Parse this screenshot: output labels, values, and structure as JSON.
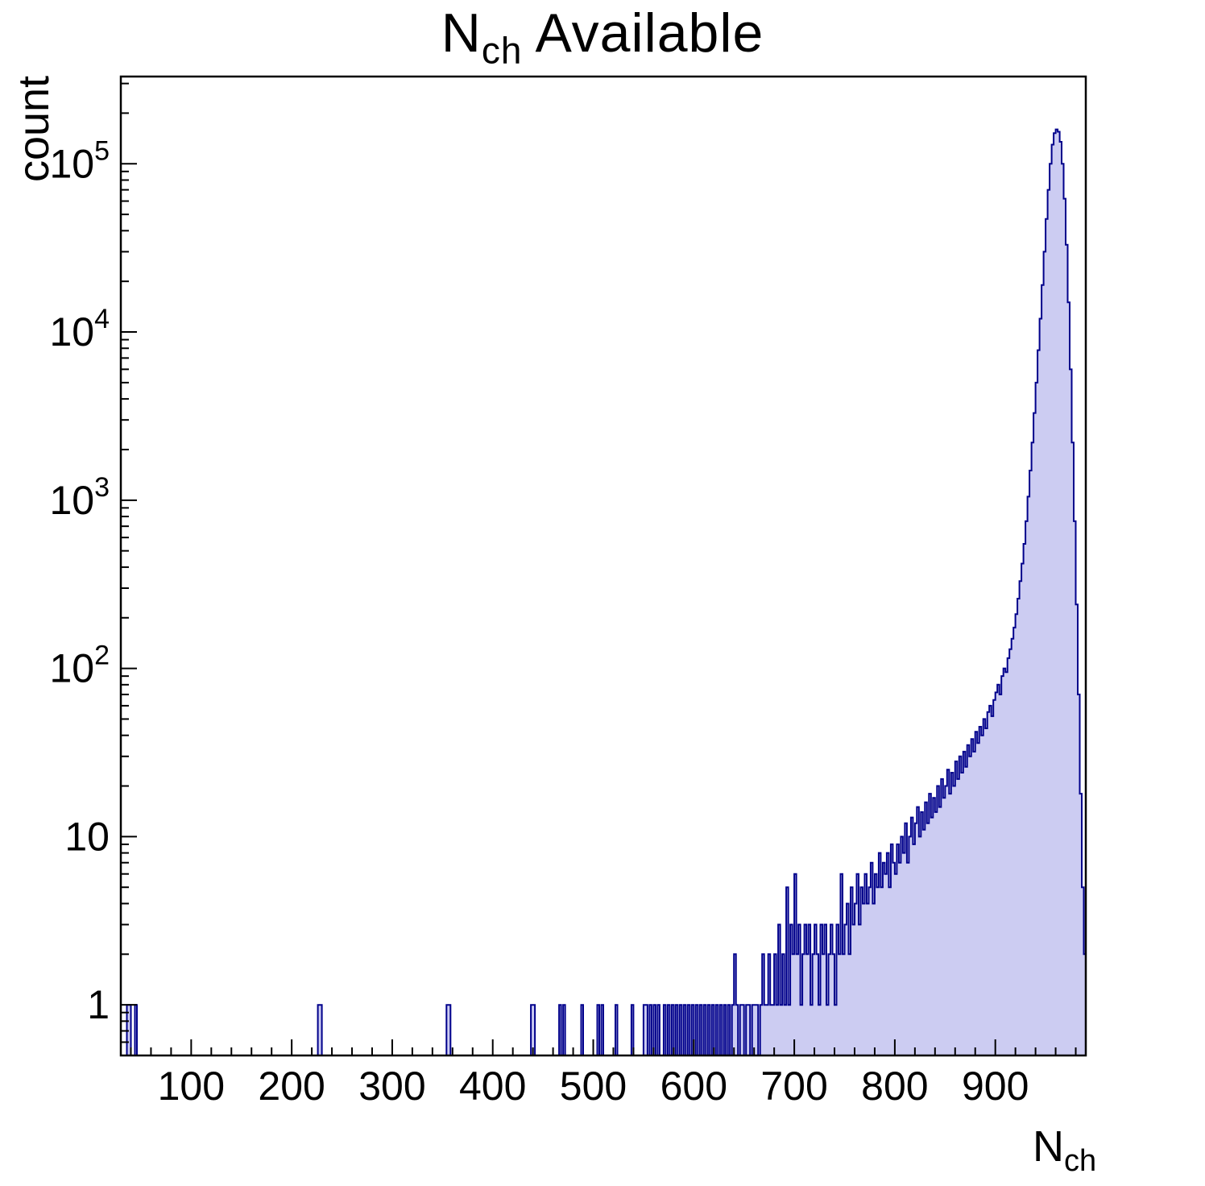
{
  "chart_data": {
    "type": "bar",
    "title": {
      "main": "N",
      "sub": "ch",
      "rest": " Available"
    },
    "xlabel": {
      "main": "N",
      "sub": "ch"
    },
    "ylabel": "count",
    "x_range": [
      30,
      990
    ],
    "y_range_log": [
      0.5,
      330000
    ],
    "x_major_ticks": [
      100,
      200,
      300,
      400,
      500,
      600,
      700,
      800,
      900
    ],
    "x_minor_step": 20,
    "y_major_ticks": [
      1,
      10,
      100,
      1000,
      10000,
      100000
    ],
    "y_tick_labels": [
      "1",
      "10",
      "10^2",
      "10^3",
      "10^4",
      "10^5"
    ],
    "grid": false,
    "legend": "none",
    "colors": {
      "fill": "#ccccf2",
      "line": "#00008b",
      "frame": "#000000"
    },
    "bin_width": 2,
    "sparse_single_count_bins": [
      36,
      38,
      43,
      225,
      227,
      353,
      356,
      437,
      440,
      466,
      469,
      488,
      504,
      507,
      521,
      538,
      549,
      552,
      556,
      560,
      564,
      570,
      574,
      578,
      582,
      586,
      590,
      594,
      598,
      602,
      606,
      610,
      614,
      618,
      622,
      626,
      630,
      634,
      637
    ],
    "dense_region": {
      "x_start": 640,
      "bin_width": 2,
      "counts": [
        2,
        1,
        0,
        1,
        1,
        0,
        1,
        1,
        0,
        1,
        1,
        1,
        0,
        1,
        2,
        1,
        1,
        2,
        1,
        1,
        2,
        1,
        3,
        1,
        2,
        1,
        5,
        1,
        3,
        2,
        6,
        2,
        3,
        1,
        2,
        3,
        2,
        3,
        1,
        2,
        3,
        2,
        1,
        3,
        2,
        3,
        1,
        2,
        3,
        2,
        1,
        3,
        2,
        6,
        2,
        3,
        4,
        2,
        5,
        3,
        4,
        6,
        3,
        5,
        4,
        6,
        4,
        5,
        7,
        4,
        6,
        5,
        8,
        5,
        7,
        6,
        8,
        5,
        9,
        7,
        6,
        9,
        7,
        10,
        8,
        12,
        7,
        10,
        13,
        9,
        12,
        15,
        10,
        14,
        11,
        16,
        12,
        18,
        13,
        17,
        14,
        20,
        15,
        22,
        17,
        20,
        25,
        18,
        24,
        20,
        28,
        22,
        30,
        24,
        32,
        26,
        35,
        30,
        38,
        32,
        42,
        36,
        45,
        40,
        50,
        44,
        55,
        60,
        52,
        65,
        72,
        80,
        70,
        90,
        100,
        95,
        115,
        130,
        150,
        175,
        210,
        260,
        330,
        420,
        550,
        750,
        1050,
        1500,
        2200,
        3300,
        5000,
        7800,
        12000,
        19000,
        30000,
        47000,
        70000,
        100000,
        130000,
        152000,
        160000,
        155000,
        135000,
        100000,
        62000,
        33000,
        15000,
        6000,
        2200,
        750,
        240,
        70,
        18,
        5,
        2
      ]
    }
  }
}
